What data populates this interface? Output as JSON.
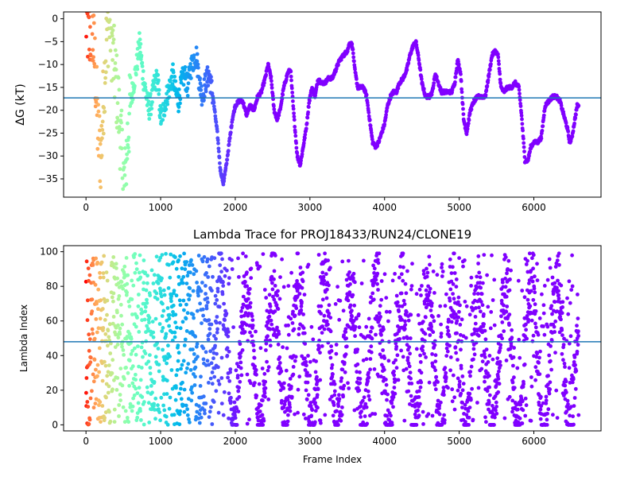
{
  "chart_data": [
    {
      "type": "scatter",
      "title": "",
      "xlabel": "",
      "ylabel": "ΔG (kT)",
      "xlim": [
        -300,
        6900
      ],
      "ylim": [
        -39,
        1.5
      ],
      "xticks": [
        0,
        1000,
        2000,
        3000,
        4000,
        5000,
        6000
      ],
      "yticks": [
        0,
        -5,
        -10,
        -15,
        -20,
        -25,
        -30,
        -35
      ],
      "hline": -17.3,
      "hline_color": "#1f77b4",
      "colormap": "rainbow (red at early frames to violet at late frames)",
      "frame_range": [
        0,
        6600
      ],
      "profile": [
        [
          0,
          0
        ],
        [
          40,
          -4
        ],
        [
          80,
          -2
        ],
        [
          120,
          -10
        ],
        [
          160,
          -25
        ],
        [
          200,
          -30
        ],
        [
          240,
          -15
        ],
        [
          280,
          -3
        ],
        [
          320,
          0
        ],
        [
          360,
          -8
        ],
        [
          400,
          -14
        ],
        [
          440,
          -20
        ],
        [
          480,
          -30
        ],
        [
          520,
          -37
        ],
        [
          560,
          -25
        ],
        [
          600,
          -18
        ],
        [
          640,
          -14
        ],
        [
          680,
          -10
        ],
        [
          720,
          -5
        ],
        [
          760,
          -12
        ],
        [
          800,
          -16
        ],
        [
          840,
          -20
        ],
        [
          880,
          -18
        ],
        [
          920,
          -14
        ],
        [
          960,
          -13
        ],
        [
          1000,
          -22
        ],
        [
          1040,
          -20
        ],
        [
          1080,
          -17
        ],
        [
          1120,
          -15
        ],
        [
          1160,
          -12
        ],
        [
          1200,
          -16
        ],
        [
          1240,
          -18
        ],
        [
          1280,
          -14
        ],
        [
          1320,
          -12
        ],
        [
          1360,
          -15
        ],
        [
          1400,
          -11
        ],
        [
          1440,
          -9
        ],
        [
          1480,
          -8
        ],
        [
          1520,
          -14
        ],
        [
          1560,
          -17
        ],
        [
          1600,
          -14
        ],
        [
          1650,
          -12
        ],
        [
          1700,
          -17
        ],
        [
          1760,
          -25
        ],
        [
          1800,
          -33
        ],
        [
          1840,
          -36
        ],
        [
          1880,
          -32
        ],
        [
          1920,
          -27
        ],
        [
          1960,
          -22
        ],
        [
          2000,
          -19
        ],
        [
          2050,
          -18
        ],
        [
          2100,
          -18
        ],
        [
          2150,
          -21
        ],
        [
          2200,
          -19
        ],
        [
          2250,
          -20
        ],
        [
          2300,
          -17
        ],
        [
          2350,
          -16
        ],
        [
          2400,
          -13
        ],
        [
          2440,
          -10
        ],
        [
          2480,
          -13
        ],
        [
          2520,
          -20
        ],
        [
          2560,
          -22
        ],
        [
          2600,
          -20
        ],
        [
          2650,
          -15
        ],
        [
          2700,
          -12
        ],
        [
          2740,
          -11
        ],
        [
          2780,
          -20
        ],
        [
          2830,
          -30
        ],
        [
          2870,
          -32
        ],
        [
          2910,
          -28
        ],
        [
          2950,
          -24
        ],
        [
          2990,
          -18
        ],
        [
          3030,
          -15
        ],
        [
          3070,
          -17
        ],
        [
          3110,
          -13
        ],
        [
          3150,
          -14
        ],
        [
          3200,
          -14
        ],
        [
          3250,
          -13
        ],
        [
          3300,
          -13
        ],
        [
          3350,
          -11
        ],
        [
          3400,
          -9
        ],
        [
          3450,
          -8
        ],
        [
          3500,
          -7
        ],
        [
          3540,
          -5
        ],
        [
          3570,
          -6
        ],
        [
          3600,
          -11
        ],
        [
          3640,
          -15
        ],
        [
          3680,
          -15
        ],
        [
          3720,
          -15
        ],
        [
          3760,
          -17
        ],
        [
          3800,
          -22
        ],
        [
          3840,
          -27
        ],
        [
          3880,
          -28
        ],
        [
          3920,
          -27
        ],
        [
          3960,
          -25
        ],
        [
          4000,
          -23
        ],
        [
          4040,
          -19
        ],
        [
          4080,
          -17
        ],
        [
          4120,
          -16
        ],
        [
          4160,
          -16
        ],
        [
          4200,
          -14
        ],
        [
          4250,
          -13
        ],
        [
          4300,
          -11
        ],
        [
          4340,
          -8
        ],
        [
          4380,
          -6
        ],
        [
          4420,
          -5
        ],
        [
          4460,
          -9
        ],
        [
          4500,
          -14
        ],
        [
          4550,
          -17
        ],
        [
          4600,
          -17
        ],
        [
          4640,
          -16
        ],
        [
          4680,
          -12
        ],
        [
          4720,
          -14
        ],
        [
          4760,
          -16
        ],
        [
          4800,
          -16
        ],
        [
          4850,
          -16
        ],
        [
          4900,
          -16
        ],
        [
          4940,
          -14
        ],
        [
          4980,
          -9
        ],
        [
          5020,
          -12
        ],
        [
          5060,
          -22
        ],
        [
          5100,
          -25
        ],
        [
          5150,
          -20
        ],
        [
          5200,
          -18
        ],
        [
          5250,
          -17
        ],
        [
          5300,
          -17
        ],
        [
          5350,
          -17
        ],
        [
          5400,
          -12
        ],
        [
          5440,
          -8
        ],
        [
          5480,
          -7
        ],
        [
          5520,
          -8
        ],
        [
          5560,
          -15
        ],
        [
          5600,
          -16
        ],
        [
          5650,
          -15
        ],
        [
          5700,
          -15
        ],
        [
          5750,
          -14
        ],
        [
          5800,
          -15
        ],
        [
          5840,
          -22
        ],
        [
          5880,
          -31
        ],
        [
          5920,
          -31
        ],
        [
          5960,
          -28
        ],
        [
          6000,
          -27
        ],
        [
          6050,
          -27
        ],
        [
          6100,
          -26
        ],
        [
          6150,
          -19
        ],
        [
          6200,
          -18
        ],
        [
          6250,
          -17
        ],
        [
          6300,
          -17
        ],
        [
          6350,
          -18
        ],
        [
          6400,
          -21
        ],
        [
          6450,
          -24
        ],
        [
          6480,
          -27
        ],
        [
          6510,
          -26
        ],
        [
          6550,
          -22
        ],
        [
          6580,
          -19
        ],
        [
          6600,
          -19
        ]
      ]
    },
    {
      "type": "scatter",
      "title": "Lambda Trace for PROJ18433/RUN24/CLONE19",
      "xlabel": "Frame Index",
      "ylabel": "Lambda Index",
      "xlim": [
        -300,
        6900
      ],
      "ylim": [
        -3.5,
        103.5
      ],
      "xticks": [
        0,
        1000,
        2000,
        3000,
        4000,
        5000,
        6000
      ],
      "yticks": [
        0,
        20,
        40,
        60,
        80,
        100
      ],
      "hline": 48,
      "hline_color": "#1f77b4",
      "colormap": "rainbow (red at early frames to violet at late frames)",
      "frame_range": [
        0,
        6600
      ],
      "lambda_range": [
        0,
        99
      ]
    }
  ]
}
